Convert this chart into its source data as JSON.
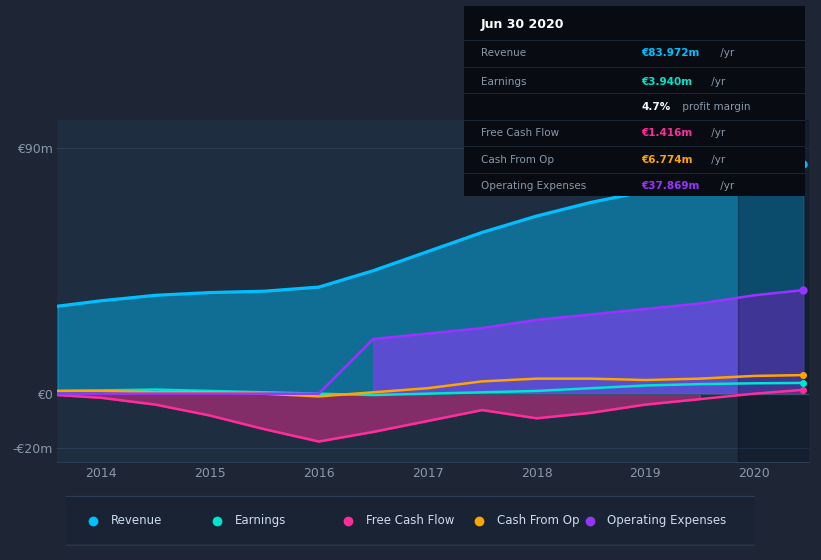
{
  "background_color": "#1e2535",
  "plot_bg_color": "#1e2d3f",
  "years": [
    2013.6,
    2014.0,
    2014.5,
    2015.0,
    2015.5,
    2016.0,
    2016.5,
    2017.0,
    2017.5,
    2018.0,
    2018.5,
    2019.0,
    2019.5,
    2020.0,
    2020.45
  ],
  "revenue": [
    32,
    34,
    36,
    37,
    37.5,
    39,
    45,
    52,
    59,
    65,
    70,
    74,
    78,
    83,
    84
  ],
  "earnings": [
    1.0,
    1.2,
    1.5,
    1.0,
    0.5,
    0.0,
    -0.5,
    0.0,
    0.5,
    1.0,
    2.0,
    3.0,
    3.5,
    3.8,
    3.94
  ],
  "free_cash_flow": [
    -0.5,
    -1.5,
    -4.0,
    -8.0,
    -13.0,
    -17.5,
    -14.0,
    -10.0,
    -6.0,
    -9.0,
    -7.0,
    -4.0,
    -2.0,
    0.0,
    1.4
  ],
  "cash_from_op": [
    1.0,
    1.0,
    0.5,
    0.5,
    0.0,
    -1.0,
    0.5,
    2.0,
    4.5,
    5.5,
    5.5,
    5.0,
    5.5,
    6.5,
    6.8
  ],
  "operating_exp": [
    0,
    0,
    0,
    0,
    0,
    0,
    20,
    22,
    24,
    27,
    29,
    31,
    33,
    36,
    37.9
  ],
  "revenue_color": "#00bfff",
  "earnings_color": "#00e5cc",
  "free_cash_flow_color": "#ff2d9b",
  "cash_from_op_color": "#ffa500",
  "operating_exp_color": "#9933ff",
  "ylim_min": -25,
  "ylim_max": 100,
  "ytick_vals": [
    -20,
    0,
    90
  ],
  "ytick_labels": [
    "-€20m",
    "€0",
    "€90m"
  ],
  "xticks": [
    2014,
    2015,
    2016,
    2017,
    2018,
    2019,
    2020
  ],
  "opex_start_year": 2016.3,
  "legend_labels": [
    "Revenue",
    "Earnings",
    "Free Cash Flow",
    "Cash From Op",
    "Operating Expenses"
  ],
  "legend_colors": [
    "#00bfff",
    "#00e5cc",
    "#ff2d9b",
    "#ffa500",
    "#9933ff"
  ],
  "info_title": "Jun 30 2020",
  "info_rows": [
    {
      "label": "Revenue",
      "value": "€83.972m /yr",
      "color": "#00bfff"
    },
    {
      "label": "Earnings",
      "value": "€3.940m /yr",
      "color": "#00e5cc"
    },
    {
      "label": "",
      "value": "4.7% profit margin",
      "color": "#ffffff"
    },
    {
      "label": "Free Cash Flow",
      "value": "€1.416m /yr",
      "color": "#ff2d9b"
    },
    {
      "label": "Cash From Op",
      "value": "€6.774m /yr",
      "color": "#ffa500"
    },
    {
      "label": "Operating Expenses",
      "value": "€37.869m /yr",
      "color": "#9933ff"
    }
  ]
}
